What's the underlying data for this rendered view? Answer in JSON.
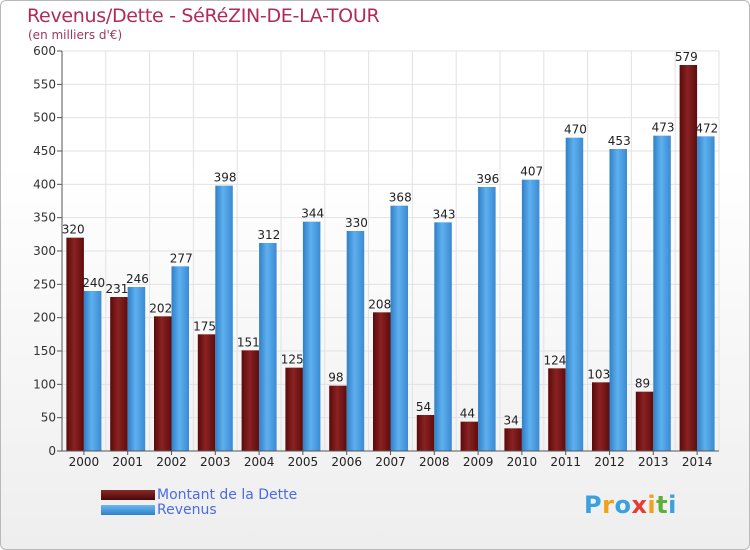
{
  "page": {
    "title": "Revenus/Dette - SéRéZIN-DE-LA-TOUR",
    "subtitle": "(en milliers d'€)"
  },
  "chart_data": {
    "type": "bar",
    "title": "Revenus/Dette - SéRéZIN-DE-LA-TOUR",
    "ylabel": "(en milliers d'€)",
    "categories": [
      "2000",
      "2001",
      "2002",
      "2003",
      "2004",
      "2005",
      "2006",
      "2007",
      "2008",
      "2009",
      "2010",
      "2011",
      "2012",
      "2013",
      "2014"
    ],
    "series": [
      {
        "name": "Montant de la Dette",
        "color": "#7a1414",
        "values": [
          320,
          231,
          202,
          175,
          151,
          125,
          98,
          208,
          54,
          44,
          34,
          124,
          103,
          89,
          579
        ]
      },
      {
        "name": "Revenus",
        "color": "#3d8fd6",
        "values": [
          240,
          246,
          277,
          398,
          312,
          344,
          330,
          368,
          343,
          396,
          407,
          470,
          453,
          473,
          472
        ]
      }
    ],
    "ylim": [
      0,
      600
    ],
    "yticks": [
      0,
      50,
      100,
      150,
      200,
      250,
      300,
      350,
      400,
      450,
      500,
      550,
      600
    ],
    "grid": true,
    "legend": "bottom-left"
  },
  "brand": {
    "letters": [
      {
        "ch": "P",
        "color": "#3aa0de"
      },
      {
        "ch": "r",
        "color": "#f0a21c"
      },
      {
        "ch": "o",
        "color": "#3aa0de"
      },
      {
        "ch": "x",
        "color": "#e63c32"
      },
      {
        "ch": "i",
        "color": "#f0a21c"
      },
      {
        "ch": "t",
        "color": "#5cb03a"
      },
      {
        "ch": "i",
        "color": "#3aa0de"
      }
    ]
  }
}
